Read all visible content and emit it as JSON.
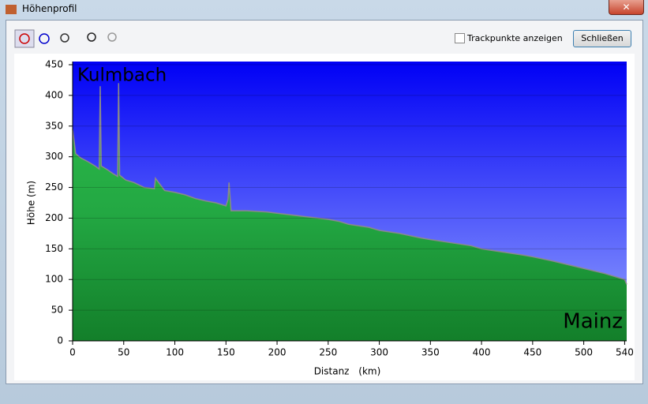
{
  "window_title": "Höhenprofil",
  "toolbar": {
    "checkbox_label": "Trackpunkte anzeigen",
    "button_label": "Schließen"
  },
  "chart_data": {
    "type": "area",
    "xlabel": "Distanz (km)",
    "ylabel": "Höhe (m)",
    "annotations": [
      "Kulmbach",
      "Mainz"
    ],
    "x": [
      0,
      3,
      8,
      15,
      22,
      26,
      27,
      28,
      33,
      40,
      44,
      45,
      46,
      52,
      60,
      70,
      80,
      81,
      90,
      100,
      110,
      120,
      130,
      140,
      150,
      152,
      153,
      155,
      170,
      190,
      200,
      210,
      230,
      250,
      260,
      270,
      290,
      300,
      320,
      340,
      350,
      370,
      390,
      400,
      420,
      440,
      450,
      470,
      490,
      500,
      520,
      530,
      540,
      542
    ],
    "values": [
      345,
      305,
      298,
      292,
      285,
      280,
      415,
      285,
      280,
      272,
      268,
      420,
      270,
      262,
      258,
      250,
      248,
      265,
      245,
      242,
      238,
      232,
      228,
      225,
      220,
      230,
      258,
      212,
      212,
      210,
      208,
      206,
      202,
      198,
      195,
      190,
      185,
      180,
      175,
      168,
      165,
      160,
      155,
      150,
      145,
      140,
      137,
      130,
      122,
      118,
      110,
      105,
      100,
      92
    ],
    "color": "#1fa03a",
    "line_color": "#8a8a8a",
    "xlim": [
      0,
      542
    ],
    "xticks": [
      0,
      50,
      100,
      150,
      200,
      250,
      300,
      350,
      400,
      450,
      500,
      540
    ],
    "ylim": [
      0,
      450
    ],
    "yticks": [
      0,
      50,
      100,
      150,
      200,
      250,
      300,
      350,
      400,
      450
    ],
    "grid": true
  }
}
